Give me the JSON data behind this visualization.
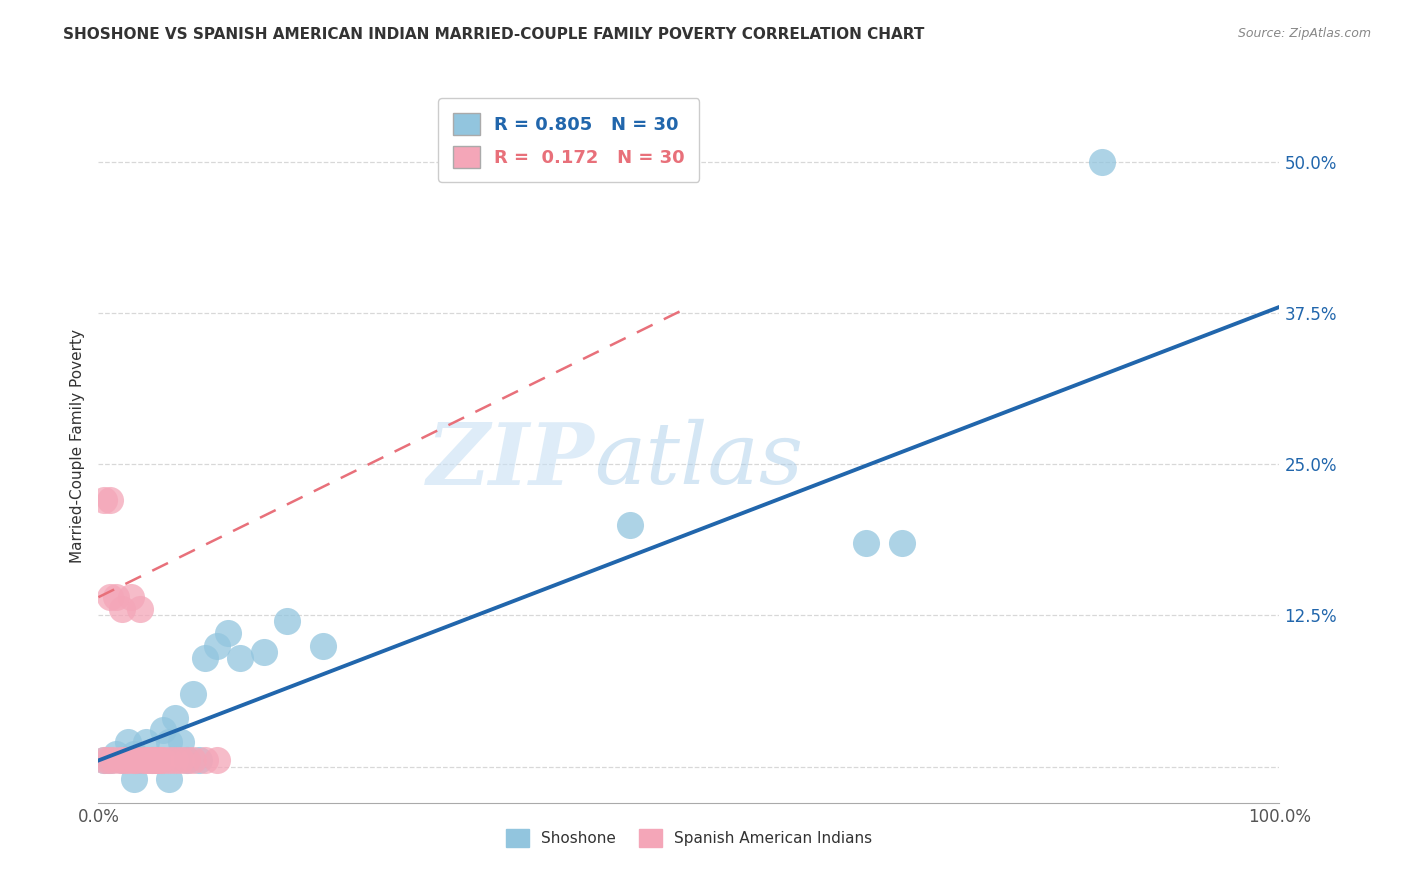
{
  "title": "SHOSHONE VS SPANISH AMERICAN INDIAN MARRIED-COUPLE FAMILY POVERTY CORRELATION CHART",
  "source": "Source: ZipAtlas.com",
  "ylabel": "Married-Couple Family Poverty",
  "xlim": [
    0,
    1.0
  ],
  "ylim": [
    -0.03,
    0.56
  ],
  "yticks": [
    0.0,
    0.125,
    0.25,
    0.375,
    0.5
  ],
  "ytick_labels": [
    "",
    "12.5%",
    "25.0%",
    "37.5%",
    "50.0%"
  ],
  "xticks": [
    0.0,
    0.25,
    0.5,
    0.75,
    1.0
  ],
  "xtick_labels": [
    "0.0%",
    "",
    "",
    "",
    "100.0%"
  ],
  "shoshone_R": 0.805,
  "shoshone_N": 30,
  "spanish_R": 0.172,
  "spanish_N": 30,
  "shoshone_color": "#92c5de",
  "spanish_color": "#f4a6b8",
  "shoshone_line_color": "#2166ac",
  "spanish_line_color": "#e8707a",
  "shoshone_scatter_x": [
    0.005,
    0.01,
    0.015,
    0.02,
    0.025,
    0.03,
    0.035,
    0.04,
    0.045,
    0.05,
    0.055,
    0.06,
    0.065,
    0.07,
    0.075,
    0.08,
    0.085,
    0.09,
    0.1,
    0.11,
    0.12,
    0.14,
    0.16,
    0.19,
    0.45,
    0.65,
    0.68,
    0.85,
    0.03,
    0.06
  ],
  "shoshone_scatter_y": [
    0.005,
    0.005,
    0.01,
    0.005,
    0.02,
    0.01,
    0.005,
    0.02,
    0.005,
    0.005,
    0.03,
    0.02,
    0.04,
    0.02,
    0.005,
    0.06,
    0.005,
    0.09,
    0.1,
    0.11,
    0.09,
    0.095,
    0.12,
    0.1,
    0.2,
    0.185,
    0.185,
    0.5,
    -0.01,
    -0.01
  ],
  "spanish_scatter_x": [
    0.005,
    0.008,
    0.01,
    0.012,
    0.015,
    0.018,
    0.02,
    0.022,
    0.025,
    0.028,
    0.03,
    0.032,
    0.035,
    0.038,
    0.04,
    0.042,
    0.045,
    0.048,
    0.05,
    0.052,
    0.055,
    0.06,
    0.065,
    0.07,
    0.075,
    0.08,
    0.09,
    0.1,
    0.005,
    0.01
  ],
  "spanish_scatter_y": [
    0.005,
    0.005,
    0.22,
    0.005,
    0.14,
    0.005,
    0.13,
    0.005,
    0.005,
    0.14,
    0.005,
    0.005,
    0.13,
    0.005,
    0.005,
    0.005,
    0.005,
    0.005,
    0.005,
    0.005,
    0.005,
    0.005,
    0.005,
    0.005,
    0.005,
    0.005,
    0.005,
    0.005,
    0.22,
    0.14
  ],
  "blue_line_x": [
    0.0,
    1.0
  ],
  "blue_line_y": [
    0.005,
    0.38
  ],
  "pink_line_x": [
    0.0,
    0.5
  ],
  "pink_line_y": [
    0.14,
    0.38
  ],
  "watermark_zip": "ZIP",
  "watermark_atlas": "atlas",
  "background_color": "#ffffff",
  "grid_color": "#d8d8d8"
}
